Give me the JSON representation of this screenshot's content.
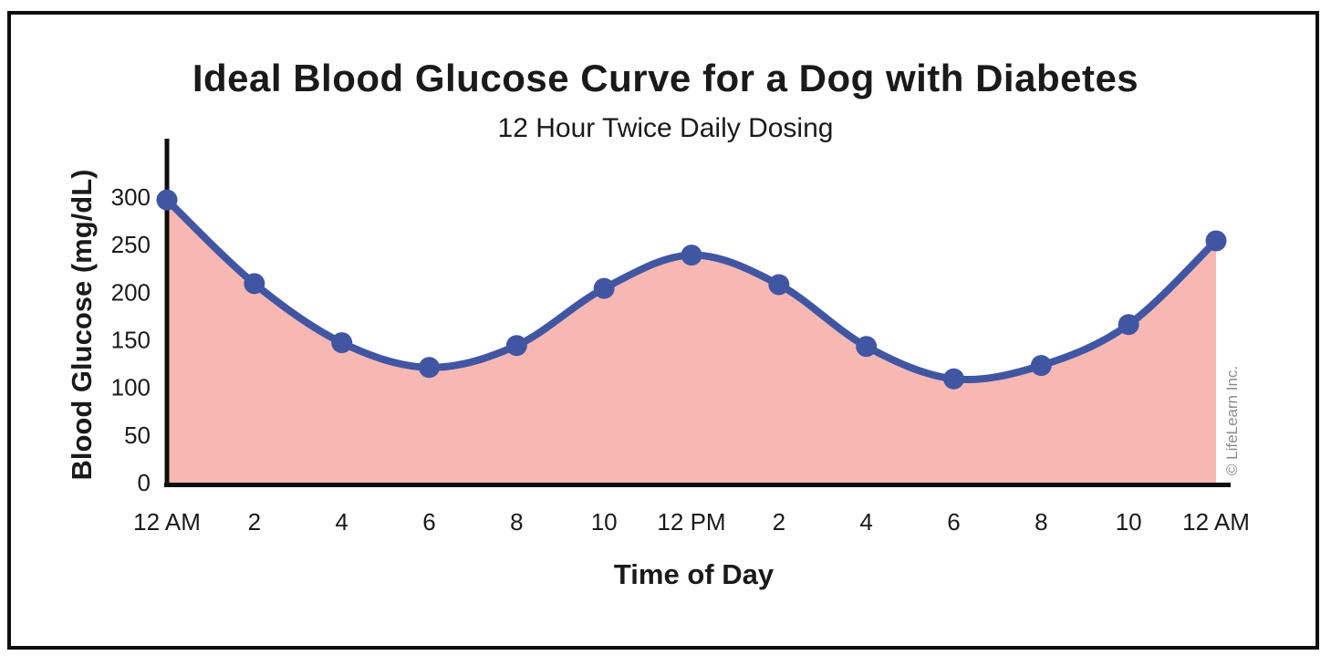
{
  "figure": {
    "watermark": "© LifeLearn Inc."
  },
  "chart_data": {
    "type": "area",
    "title": "Ideal Blood Glucose Curve for a Dog with Diabetes",
    "subtitle": "12 Hour Twice Daily Dosing",
    "xlabel": "Time of Day",
    "ylabel": "Blood Glucose (mg/dL)",
    "categories": [
      "12 AM",
      "2",
      "4",
      "6",
      "8",
      "10",
      "12 PM",
      "2",
      "4",
      "6",
      "8",
      "10",
      "12 AM"
    ],
    "values": [
      298,
      210,
      148,
      122,
      145,
      205,
      240,
      209,
      144,
      110,
      124,
      167,
      255
    ],
    "y_ticks": [
      0,
      50,
      100,
      150,
      200,
      250,
      300
    ],
    "ylim": [
      0,
      362
    ],
    "grid": false,
    "legend": "none",
    "marker": "circle",
    "watermark": "© LifeLearn Inc.",
    "colors": {
      "line": "#4156a3",
      "marker": "#4156a3",
      "fill": "#f7b8b4",
      "axis": "#0e0e0e",
      "text": "#1a1a1a",
      "watermark": "#8b8b8b"
    }
  }
}
